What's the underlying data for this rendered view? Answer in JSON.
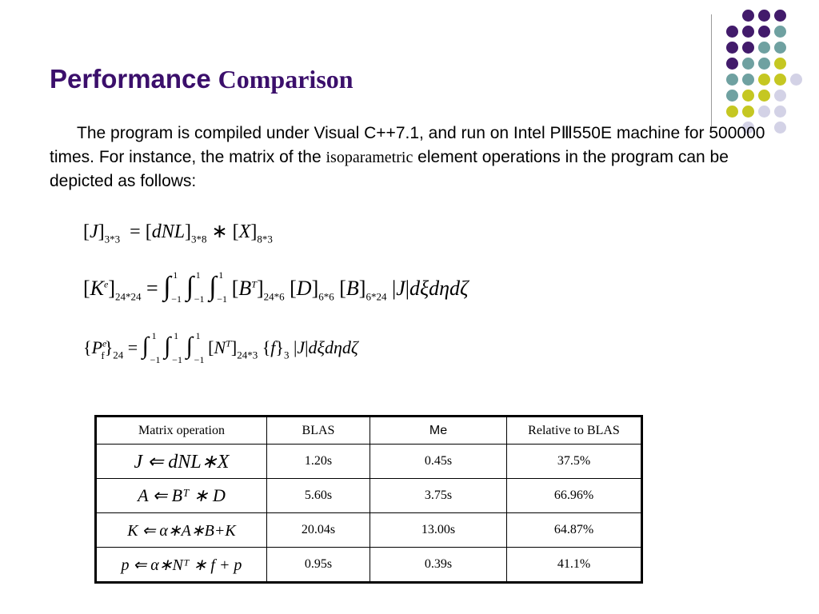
{
  "slide": {
    "title_sans": "Performance",
    "title_serif": "Comparison",
    "body_part1": "The program is compiled under Visual C++7.1, and run on Intel PⅢ550E machine for 500000 times. For instance, the matrix of the",
    "body_serif_word": "isoparametric",
    "body_part2": "element operations in the program can be depicted as follows:"
  },
  "equations": {
    "eq1": {
      "lhs": "J",
      "lhs_sub": "3*3",
      "op1": "dNL",
      "op1_sub": "3*8",
      "op2": "X",
      "op2_sub": "8*3"
    },
    "eq2": {
      "lhs": "K",
      "lhs_sup": "e",
      "lhs_sub": "24*24",
      "lim_lo": "−1",
      "lim_hi": "1",
      "b": "B",
      "b_sup": "T",
      "b_sub": "24*6",
      "d": "D",
      "d_sub": "6*6",
      "b2": "B",
      "b2_sub": "6*24",
      "jac": "J",
      "diff": "dξdηdζ"
    },
    "eq3": {
      "lhs": "P",
      "lhs_sup": "e",
      "lhs_subsub": "f",
      "lhs_sub": "24",
      "lim_lo": "−1",
      "lim_hi": "1",
      "n": "N",
      "n_sup": "T",
      "n_sub": "24*3",
      "f": "f",
      "f_sub": "3",
      "jac": "J",
      "diff": "dξdηdζ"
    }
  },
  "table": {
    "headers": [
      "Matrix operation",
      "BLAS",
      "Me",
      "Relative to BLAS"
    ],
    "rows": [
      {
        "operation": "J ⇐ dNL∗X",
        "blas": "1.20s",
        "me": "0.45s",
        "relative": "37.5%"
      },
      {
        "operation": "A ⇐ Bᵀ ∗ D",
        "blas": "5.60s",
        "me": "3.75s",
        "relative": "66.96%"
      },
      {
        "operation": "K ⇐ α∗A∗B+K",
        "blas": "20.04s",
        "me": "13.00s",
        "relative": "64.87%"
      },
      {
        "operation": "p ⇐ α∗Nᵀ ∗ f + p",
        "blas": "0.95s",
        "me": "0.39s",
        "relative": "41.1%"
      }
    ]
  },
  "colors": {
    "title": "#3b0f6b",
    "dot_purple": "#421b6b",
    "dot_teal": "#6fa1a1",
    "dot_yellow": "#c5c722",
    "dot_lavender": "#d3d2e6"
  }
}
